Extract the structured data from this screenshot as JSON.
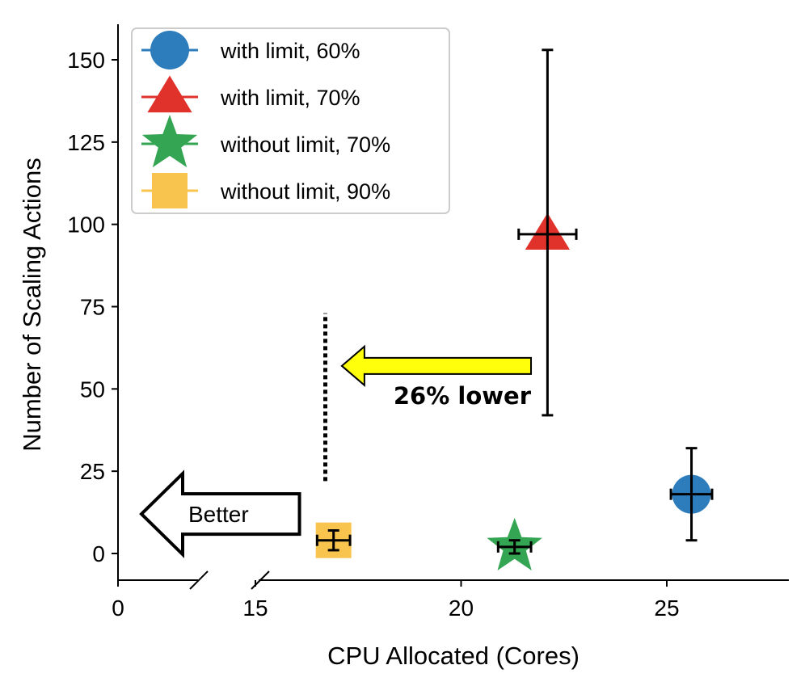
{
  "chart_data": {
    "type": "scatter",
    "title": "",
    "xlabel": "CPU Allocated (Cores)",
    "ylabel": "Number of Scaling Actions",
    "x_ticks": [
      0,
      15,
      20,
      25
    ],
    "x_tick_labels": [
      "0",
      "15",
      "20",
      "25"
    ],
    "x_axis_break": "between 0 and 15",
    "y_ticks": [
      0,
      25,
      50,
      75,
      100,
      125,
      150
    ],
    "y_tick_labels": [
      "0",
      "25",
      "50",
      "75",
      "100",
      "125",
      "150"
    ],
    "ylim": [
      -8,
      160
    ],
    "grid": false,
    "legend_position": "top-left",
    "series": [
      {
        "name": "with limit, 60%",
        "marker": "circle",
        "color": "#2d7dbd",
        "x": 25.6,
        "y": 18,
        "xerr": 0.5,
        "yerr": [
          14,
          14
        ]
      },
      {
        "name": "with limit, 70%",
        "marker": "triangle",
        "color": "#e0312a",
        "x": 22.1,
        "y": 97,
        "xerr": 0.7,
        "yerr": [
          55,
          56
        ]
      },
      {
        "name": "without limit, 70%",
        "marker": "star",
        "color": "#34a552",
        "x": 21.3,
        "y": 2,
        "xerr": 0.4,
        "yerr": [
          2,
          2
        ]
      },
      {
        "name": "without limit, 90%",
        "marker": "square",
        "color": "#f9c44d",
        "x": 16.9,
        "y": 4,
        "xerr": 0.4,
        "yerr": [
          3,
          3
        ]
      }
    ],
    "annotations": [
      {
        "text": "26% lower",
        "type": "arrow",
        "color": "#ffff0b",
        "from_x": 21.7,
        "to_x": 17.1,
        "y": 57
      },
      {
        "text": "Better",
        "type": "hollow-arrow",
        "direction": "left",
        "x_from": 15.6,
        "x_to": 13.9,
        "y": 12
      },
      {
        "type": "dotted-line",
        "x": 16.7,
        "y_from": 22,
        "y_to": 73
      }
    ]
  }
}
